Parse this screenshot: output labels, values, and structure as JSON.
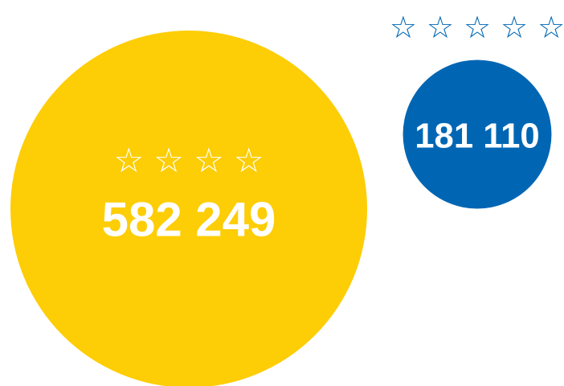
{
  "chart_data": {
    "type": "bubble",
    "categories": [
      "☆☆☆☆",
      "☆☆☆☆☆"
    ],
    "values": [
      582249,
      181110
    ],
    "value_labels": [
      "582 249",
      "181 110"
    ],
    "colors": [
      "#fdcd06",
      "#0066b3"
    ]
  }
}
